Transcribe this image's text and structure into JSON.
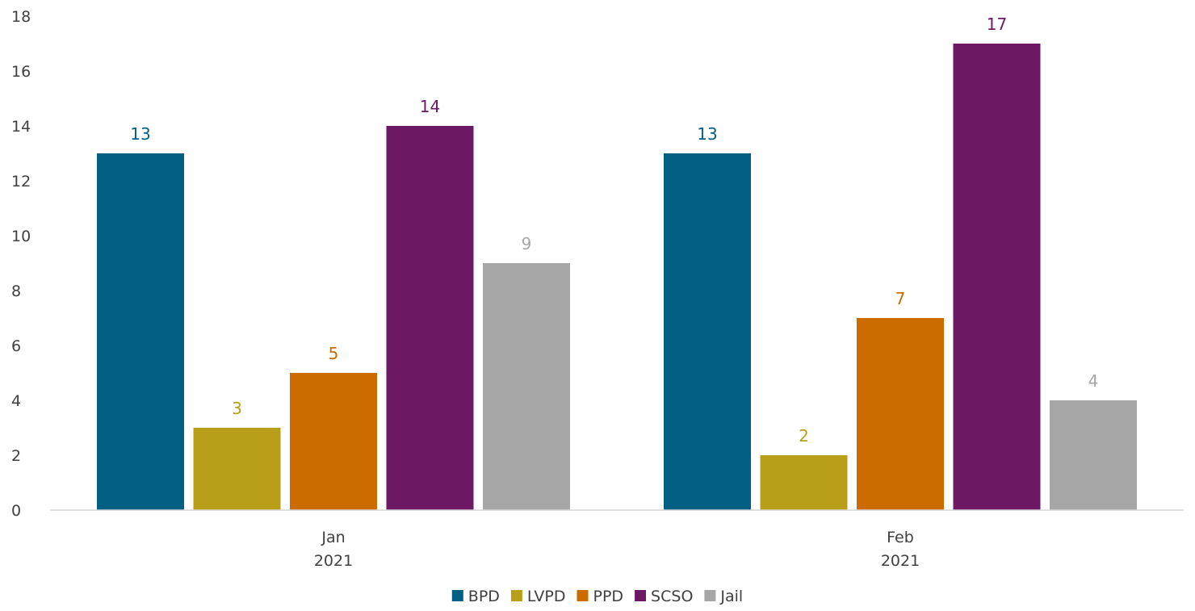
{
  "chart_data": {
    "type": "bar",
    "categories": [
      {
        "line1": "Jan",
        "line2": "2021"
      },
      {
        "line1": "Feb",
        "line2": "2021"
      }
    ],
    "series": [
      {
        "name": "BPD",
        "color": "#005f83",
        "values": [
          13,
          13
        ]
      },
      {
        "name": "LVPD",
        "color": "#b89e19",
        "values": [
          3,
          2
        ]
      },
      {
        "name": "PPD",
        "color": "#cc6b00",
        "values": [
          5,
          7
        ]
      },
      {
        "name": "SCSO",
        "color": "#6c1864",
        "values": [
          14,
          17
        ]
      },
      {
        "name": "Jail",
        "color": "#a6a6a6",
        "values": [
          9,
          4
        ]
      }
    ],
    "ylim": [
      0,
      18
    ],
    "yticks": [
      0,
      2,
      4,
      6,
      8,
      10,
      12,
      14,
      16,
      18
    ],
    "grid": false,
    "legend_position": "bottom",
    "data_labels": true,
    "title": "",
    "xlabel": "",
    "ylabel": ""
  }
}
